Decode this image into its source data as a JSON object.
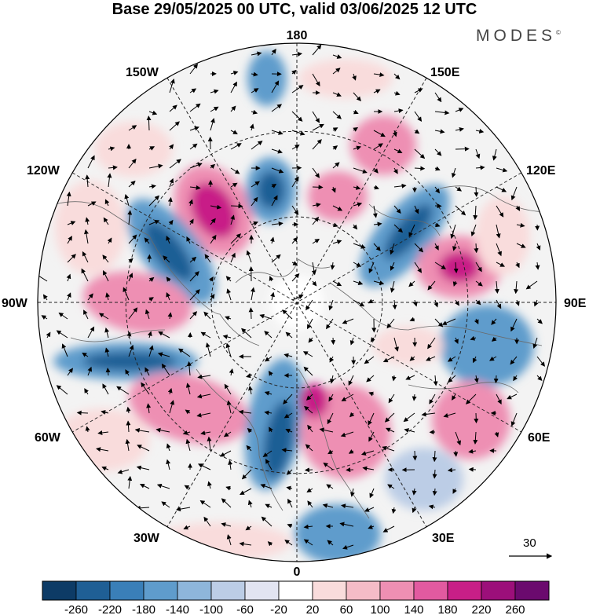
{
  "title": "Base 29/05/2025 00 UTC, valid 03/06/2025 12 UTC",
  "brand": "MODES",
  "brand_mark": "©",
  "meridian_labels": {
    "top": "180",
    "bottom": "0",
    "left": "90W",
    "right": "90E",
    "upper_left_1": "150W",
    "upper_left_2": "120W",
    "upper_right_1": "150E",
    "upper_right_2": "120E",
    "lower_left_1": "60W",
    "lower_left_2": "30W",
    "lower_right_1": "60E",
    "lower_right_2": "30E"
  },
  "reference_vector_label": "30",
  "colorbar": {
    "colors": [
      "#0d3b66",
      "#1f5f95",
      "#3a7fb8",
      "#5f9ccc",
      "#8eb6db",
      "#bccde6",
      "#e2e4f1",
      "#ffffff",
      "#f9dcdc",
      "#f5bcc7",
      "#ee8fb3",
      "#e25aa0",
      "#c81f87",
      "#9c0f7a",
      "#6b0a6e"
    ],
    "tick_labels": [
      "-260",
      "-220",
      "-180",
      "-140",
      "-100",
      "-60",
      "-20",
      "20",
      "60",
      "100",
      "140",
      "180",
      "220",
      "260"
    ]
  },
  "anomaly_colors": {
    "strong_positive": "#c81f87",
    "positive": "#ee8fb3",
    "weak_positive": "#f9dcdc",
    "strong_negative": "#1f5f95",
    "negative": "#5f9ccc",
    "weak_negative": "#bccde6"
  }
}
